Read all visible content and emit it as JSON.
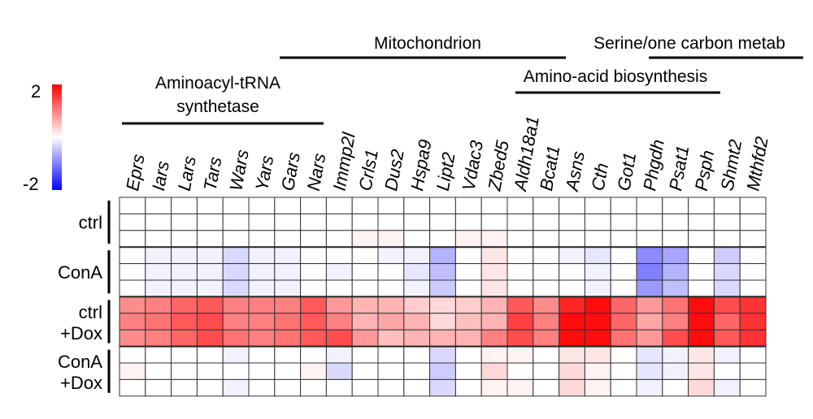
{
  "chart_data": {
    "type": "heatmap",
    "title": "",
    "color_scale": {
      "min": -2,
      "max": 2,
      "min_label": "-2",
      "max_label": "2",
      "low_color": "#0000ff",
      "mid_color": "#ffffff",
      "high_color": "#ff0000"
    },
    "genes": [
      "Eprs",
      "Iars",
      "Lars",
      "Tars",
      "Wars",
      "Yars",
      "Gars",
      "Nars",
      "Immp2l",
      "Crls1",
      "Dus2",
      "Hspa9",
      "Lipt2",
      "Vdac3",
      "Zbed5",
      "Aldh18a1",
      "Bcat1",
      "Asns",
      "Cth",
      "Got1",
      "Phgdh",
      "Psat1",
      "Psph",
      "Shmt2",
      "Mthfd2"
    ],
    "categories": [
      {
        "label": "Aminoacyl-tRNA synthetase",
        "line1": "Aminoacyl-tRNA",
        "line2": "synthetase",
        "genes": [
          "Eprs",
          "Iars",
          "Lars",
          "Tars",
          "Wars",
          "Yars",
          "Gars",
          "Nars"
        ]
      },
      {
        "label": "Mitochondrion",
        "genes": [
          "Immp2l",
          "Crls1",
          "Dus2",
          "Hspa9",
          "Lipt2",
          "Vdac3",
          "Zbed5",
          "Aldh18a1",
          "Bcat1",
          "Asns",
          "Cth",
          "Got1",
          "Phgdh",
          "Psat1",
          "Psph",
          "Shmt2",
          "Mthfd2"
        ]
      },
      {
        "label": "Amino-acid biosynthesis",
        "genes": [
          "Aldh18a1",
          "Bcat1",
          "Asns",
          "Cth",
          "Got1",
          "Phgdh",
          "Psat1",
          "Psph",
          "Shmt2"
        ]
      },
      {
        "label": "Serine/one carbon metab",
        "genes": [
          "Phgdh",
          "Psat1",
          "Psph",
          "Shmt2",
          "Mthfd2"
        ]
      }
    ],
    "groups": [
      {
        "line1": "ctrl",
        "line2": "",
        "samples": 3
      },
      {
        "line1": "ConA",
        "line2": "",
        "samples": 3
      },
      {
        "line1": "ctrl",
        "line2": "+Dox",
        "samples": 3
      },
      {
        "line1": "ConA",
        "line2": "+Dox",
        "samples": 3
      }
    ],
    "values": [
      [
        0,
        0,
        0,
        0,
        0,
        0,
        0,
        0,
        0,
        0,
        0,
        0,
        0,
        0,
        0,
        0,
        0,
        0,
        0,
        0,
        0,
        0,
        0,
        0,
        0
      ],
      [
        0,
        0,
        0,
        0,
        0,
        0,
        0,
        0,
        0,
        0,
        0,
        0,
        0,
        0,
        0,
        0,
        0,
        0,
        0,
        0,
        0,
        0,
        0,
        0,
        0
      ],
      [
        0,
        0,
        0,
        0,
        0,
        0,
        0,
        0,
        0,
        0.1,
        0.1,
        0,
        0,
        0.1,
        0.1,
        0,
        0,
        0,
        0,
        0,
        0,
        0,
        0,
        0,
        0
      ],
      [
        0,
        -0.1,
        -0.1,
        -0.1,
        -0.3,
        -0.1,
        -0.1,
        0,
        0,
        0,
        -0.1,
        -0.1,
        -0.6,
        0,
        0.2,
        0,
        0,
        -0.1,
        -0.2,
        0,
        -0.9,
        -0.7,
        0,
        -0.4,
        0
      ],
      [
        0,
        -0.1,
        -0.1,
        -0.1,
        -0.3,
        -0.1,
        -0.1,
        0,
        -0.1,
        0,
        0,
        -0.2,
        -0.5,
        0,
        0.2,
        0,
        0,
        0,
        -0.1,
        0,
        -1.0,
        -0.6,
        0,
        -0.3,
        0
      ],
      [
        0,
        -0.1,
        -0.1,
        -0.1,
        -0.3,
        -0.1,
        -0.1,
        0,
        0,
        0,
        0,
        -0.1,
        -0.4,
        0,
        0.2,
        0,
        0,
        0,
        -0.1,
        0,
        -0.8,
        -0.5,
        0,
        -0.3,
        0
      ],
      [
        0.9,
        1.0,
        1.2,
        1.3,
        1.0,
        1.0,
        1.0,
        1.3,
        0.8,
        0.6,
        0.6,
        0.4,
        0.3,
        0.4,
        0.6,
        1.3,
        0.9,
        1.7,
        1.9,
        1.2,
        0.8,
        1.1,
        1.9,
        1.4,
        1.6
      ],
      [
        1.0,
        1.1,
        1.3,
        1.4,
        1.0,
        1.0,
        1.1,
        1.3,
        1.0,
        0.6,
        0.7,
        0.6,
        0.3,
        0.5,
        0.6,
        1.5,
        1.0,
        1.9,
        1.9,
        1.2,
        0.7,
        1.0,
        1.9,
        1.2,
        1.6
      ],
      [
        0.9,
        1.0,
        1.2,
        1.4,
        1.1,
        1.0,
        1.1,
        1.3,
        1.4,
        0.8,
        0.5,
        0.6,
        0.6,
        0.6,
        1.0,
        1.4,
        1.0,
        1.9,
        1.9,
        1.1,
        0.8,
        1.4,
        1.9,
        1.3,
        1.6
      ],
      [
        0,
        0,
        0,
        0,
        -0.1,
        0,
        0,
        0,
        -0.1,
        0,
        0,
        0,
        -0.3,
        0,
        0.1,
        0.1,
        0,
        0.2,
        0.2,
        0,
        -0.2,
        -0.1,
        0.2,
        -0.1,
        0
      ],
      [
        0.1,
        0,
        0,
        0,
        0,
        0,
        0,
        0.1,
        -0.3,
        0,
        0,
        0,
        -0.4,
        0,
        0.3,
        0,
        0,
        0.3,
        0.1,
        0,
        -0.2,
        -0.1,
        0.2,
        0,
        0
      ],
      [
        0,
        0,
        0,
        0,
        -0.1,
        0,
        0,
        0,
        0,
        0,
        0,
        0,
        -0.3,
        0,
        0.1,
        0.1,
        0,
        0.3,
        0.1,
        0,
        -0.1,
        0,
        0.3,
        -0.1,
        0
      ]
    ]
  }
}
